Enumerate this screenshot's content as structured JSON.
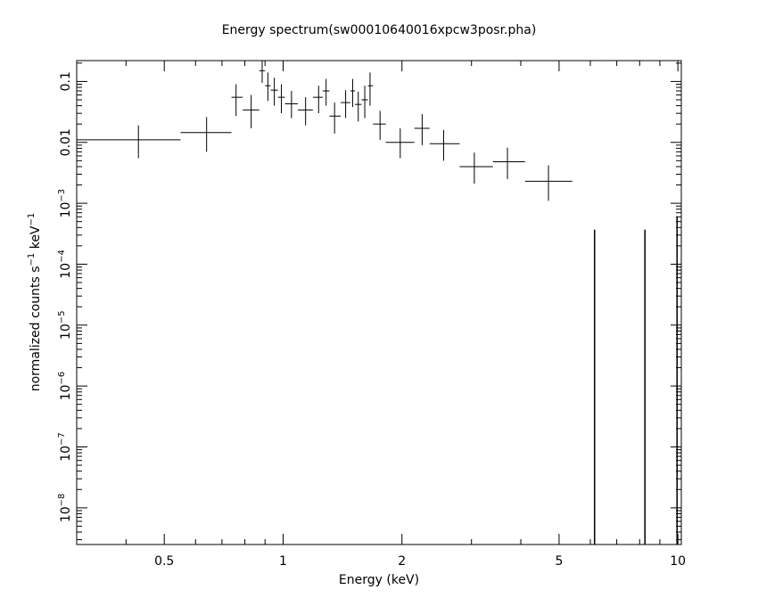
{
  "chart_data": {
    "type": "scatter",
    "title": "Energy spectrum(sw00010640016xpcw3posr.pha)",
    "xlabel": "Energy (keV)",
    "ylabel_main": "normalized counts s",
    "ylabel_sup1": "−1",
    "ylabel_mid": " keV",
    "ylabel_sup2": "−1",
    "x_scale": "log",
    "y_scale": "log",
    "xlim": [
      0.3,
      10.2
    ],
    "ylim": [
      2.5e-09,
      0.22
    ],
    "grid": false,
    "x_ticks": [
      {
        "value": 0.5,
        "label": "0.5"
      },
      {
        "value": 1,
        "label": "1"
      },
      {
        "value": 2,
        "label": "2"
      },
      {
        "value": 5,
        "label": "5"
      },
      {
        "value": 10,
        "label": "10"
      }
    ],
    "y_ticks": [
      {
        "value": 0.1,
        "label": "0.1",
        "base": "",
        "exp": ""
      },
      {
        "value": 0.01,
        "label": "0.01",
        "base": "",
        "exp": ""
      },
      {
        "value": 0.001,
        "label": "",
        "base": "10",
        "exp": "−3"
      },
      {
        "value": 0.0001,
        "label": "",
        "base": "10",
        "exp": "−4"
      },
      {
        "value": 1e-05,
        "label": "",
        "base": "10",
        "exp": "−5"
      },
      {
        "value": 1e-06,
        "label": "",
        "base": "10",
        "exp": "−6"
      },
      {
        "value": 1e-07,
        "label": "",
        "base": "10",
        "exp": "−7"
      },
      {
        "value": 1e-08,
        "label": "",
        "base": "10",
        "exp": "−8"
      }
    ],
    "series": [
      {
        "points": [
          {
            "x": 0.43,
            "xlo": 0.3,
            "xhi": 0.55,
            "y": 0.011,
            "ylo": 0.0055,
            "yhi": 0.019
          },
          {
            "x": 0.64,
            "xlo": 0.55,
            "xhi": 0.74,
            "y": 0.0145,
            "ylo": 0.007,
            "yhi": 0.026
          },
          {
            "x": 0.76,
            "xlo": 0.74,
            "xhi": 0.79,
            "y": 0.055,
            "ylo": 0.027,
            "yhi": 0.09
          },
          {
            "x": 0.83,
            "xlo": 0.79,
            "xhi": 0.87,
            "y": 0.034,
            "ylo": 0.017,
            "yhi": 0.06
          },
          {
            "x": 0.885,
            "xlo": 0.87,
            "xhi": 0.9,
            "y": 0.15,
            "ylo": 0.095,
            "yhi": 0.22
          },
          {
            "x": 0.915,
            "xlo": 0.9,
            "xhi": 0.93,
            "y": 0.085,
            "ylo": 0.048,
            "yhi": 0.14
          },
          {
            "x": 0.95,
            "xlo": 0.93,
            "xhi": 0.97,
            "y": 0.072,
            "ylo": 0.04,
            "yhi": 0.115
          },
          {
            "x": 0.99,
            "xlo": 0.97,
            "xhi": 1.01,
            "y": 0.055,
            "ylo": 0.03,
            "yhi": 0.09
          },
          {
            "x": 1.05,
            "xlo": 1.01,
            "xhi": 1.09,
            "y": 0.043,
            "ylo": 0.025,
            "yhi": 0.07
          },
          {
            "x": 1.14,
            "xlo": 1.09,
            "xhi": 1.19,
            "y": 0.034,
            "ylo": 0.019,
            "yhi": 0.055
          },
          {
            "x": 1.23,
            "xlo": 1.19,
            "xhi": 1.26,
            "y": 0.055,
            "ylo": 0.03,
            "yhi": 0.085
          },
          {
            "x": 1.285,
            "xlo": 1.26,
            "xhi": 1.31,
            "y": 0.07,
            "ylo": 0.04,
            "yhi": 0.11
          },
          {
            "x": 1.35,
            "xlo": 1.31,
            "xhi": 1.4,
            "y": 0.027,
            "ylo": 0.014,
            "yhi": 0.045
          },
          {
            "x": 1.44,
            "xlo": 1.4,
            "xhi": 1.48,
            "y": 0.045,
            "ylo": 0.025,
            "yhi": 0.072
          },
          {
            "x": 1.5,
            "xlo": 1.48,
            "xhi": 1.52,
            "y": 0.07,
            "ylo": 0.038,
            "yhi": 0.11
          },
          {
            "x": 1.55,
            "xlo": 1.52,
            "xhi": 1.58,
            "y": 0.042,
            "ylo": 0.022,
            "yhi": 0.068
          },
          {
            "x": 1.61,
            "xlo": 1.58,
            "xhi": 1.64,
            "y": 0.05,
            "ylo": 0.025,
            "yhi": 0.085
          },
          {
            "x": 1.66,
            "xlo": 1.64,
            "xhi": 1.69,
            "y": 0.085,
            "ylo": 0.04,
            "yhi": 0.14
          },
          {
            "x": 1.76,
            "xlo": 1.69,
            "xhi": 1.82,
            "y": 0.02,
            "ylo": 0.011,
            "yhi": 0.033
          },
          {
            "x": 1.98,
            "xlo": 1.82,
            "xhi": 2.15,
            "y": 0.01,
            "ylo": 0.0055,
            "yhi": 0.017
          },
          {
            "x": 2.25,
            "xlo": 2.15,
            "xhi": 2.35,
            "y": 0.017,
            "ylo": 0.009,
            "yhi": 0.029
          },
          {
            "x": 2.55,
            "xlo": 2.35,
            "xhi": 2.8,
            "y": 0.0095,
            "ylo": 0.005,
            "yhi": 0.016
          },
          {
            "x": 3.05,
            "xlo": 2.8,
            "xhi": 3.4,
            "y": 0.004,
            "ylo": 0.0021,
            "yhi": 0.0068
          },
          {
            "x": 3.7,
            "xlo": 3.4,
            "xhi": 4.1,
            "y": 0.0048,
            "ylo": 0.0025,
            "yhi": 0.0082
          },
          {
            "x": 4.7,
            "xlo": 4.1,
            "xhi": 5.4,
            "y": 0.0023,
            "ylo": 0.0011,
            "yhi": 0.0042
          }
        ]
      }
    ],
    "upper_limits": [
      {
        "x": 6.15,
        "yhi": 0.00037
      },
      {
        "x": 8.25,
        "yhi": 0.00037
      },
      {
        "x": 9.95,
        "yhi": 0.0006
      }
    ]
  }
}
